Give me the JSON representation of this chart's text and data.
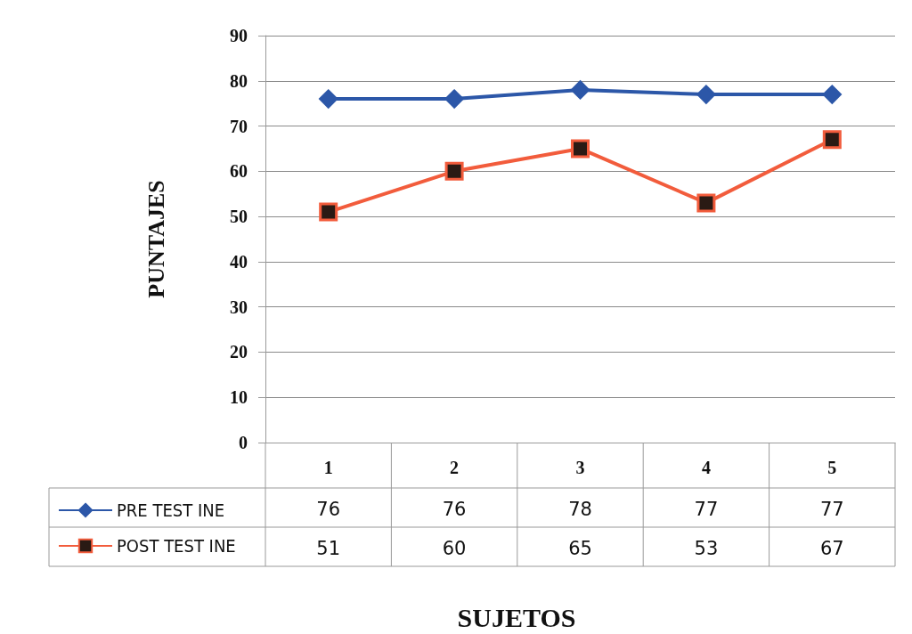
{
  "chart_data": {
    "type": "line",
    "xlabel": "SUJETOS",
    "ylabel": "PUNTAJES",
    "categories": [
      "1",
      "2",
      "3",
      "4",
      "5"
    ],
    "series": [
      {
        "name": "PRE TEST INE",
        "color": "#2c57a8",
        "marker": "diamond",
        "values": [
          76,
          76,
          78,
          77,
          77
        ]
      },
      {
        "name": "POST TEST INE",
        "color": "#f25c3c",
        "marker": "square",
        "values": [
          51,
          60,
          65,
          53,
          67
        ]
      }
    ],
    "ylim": [
      0,
      90
    ],
    "yticks": [
      0,
      10,
      20,
      30,
      40,
      50,
      60,
      70,
      80,
      90
    ],
    "grid": "y",
    "legend": "bottom left",
    "data_labels": true
  }
}
